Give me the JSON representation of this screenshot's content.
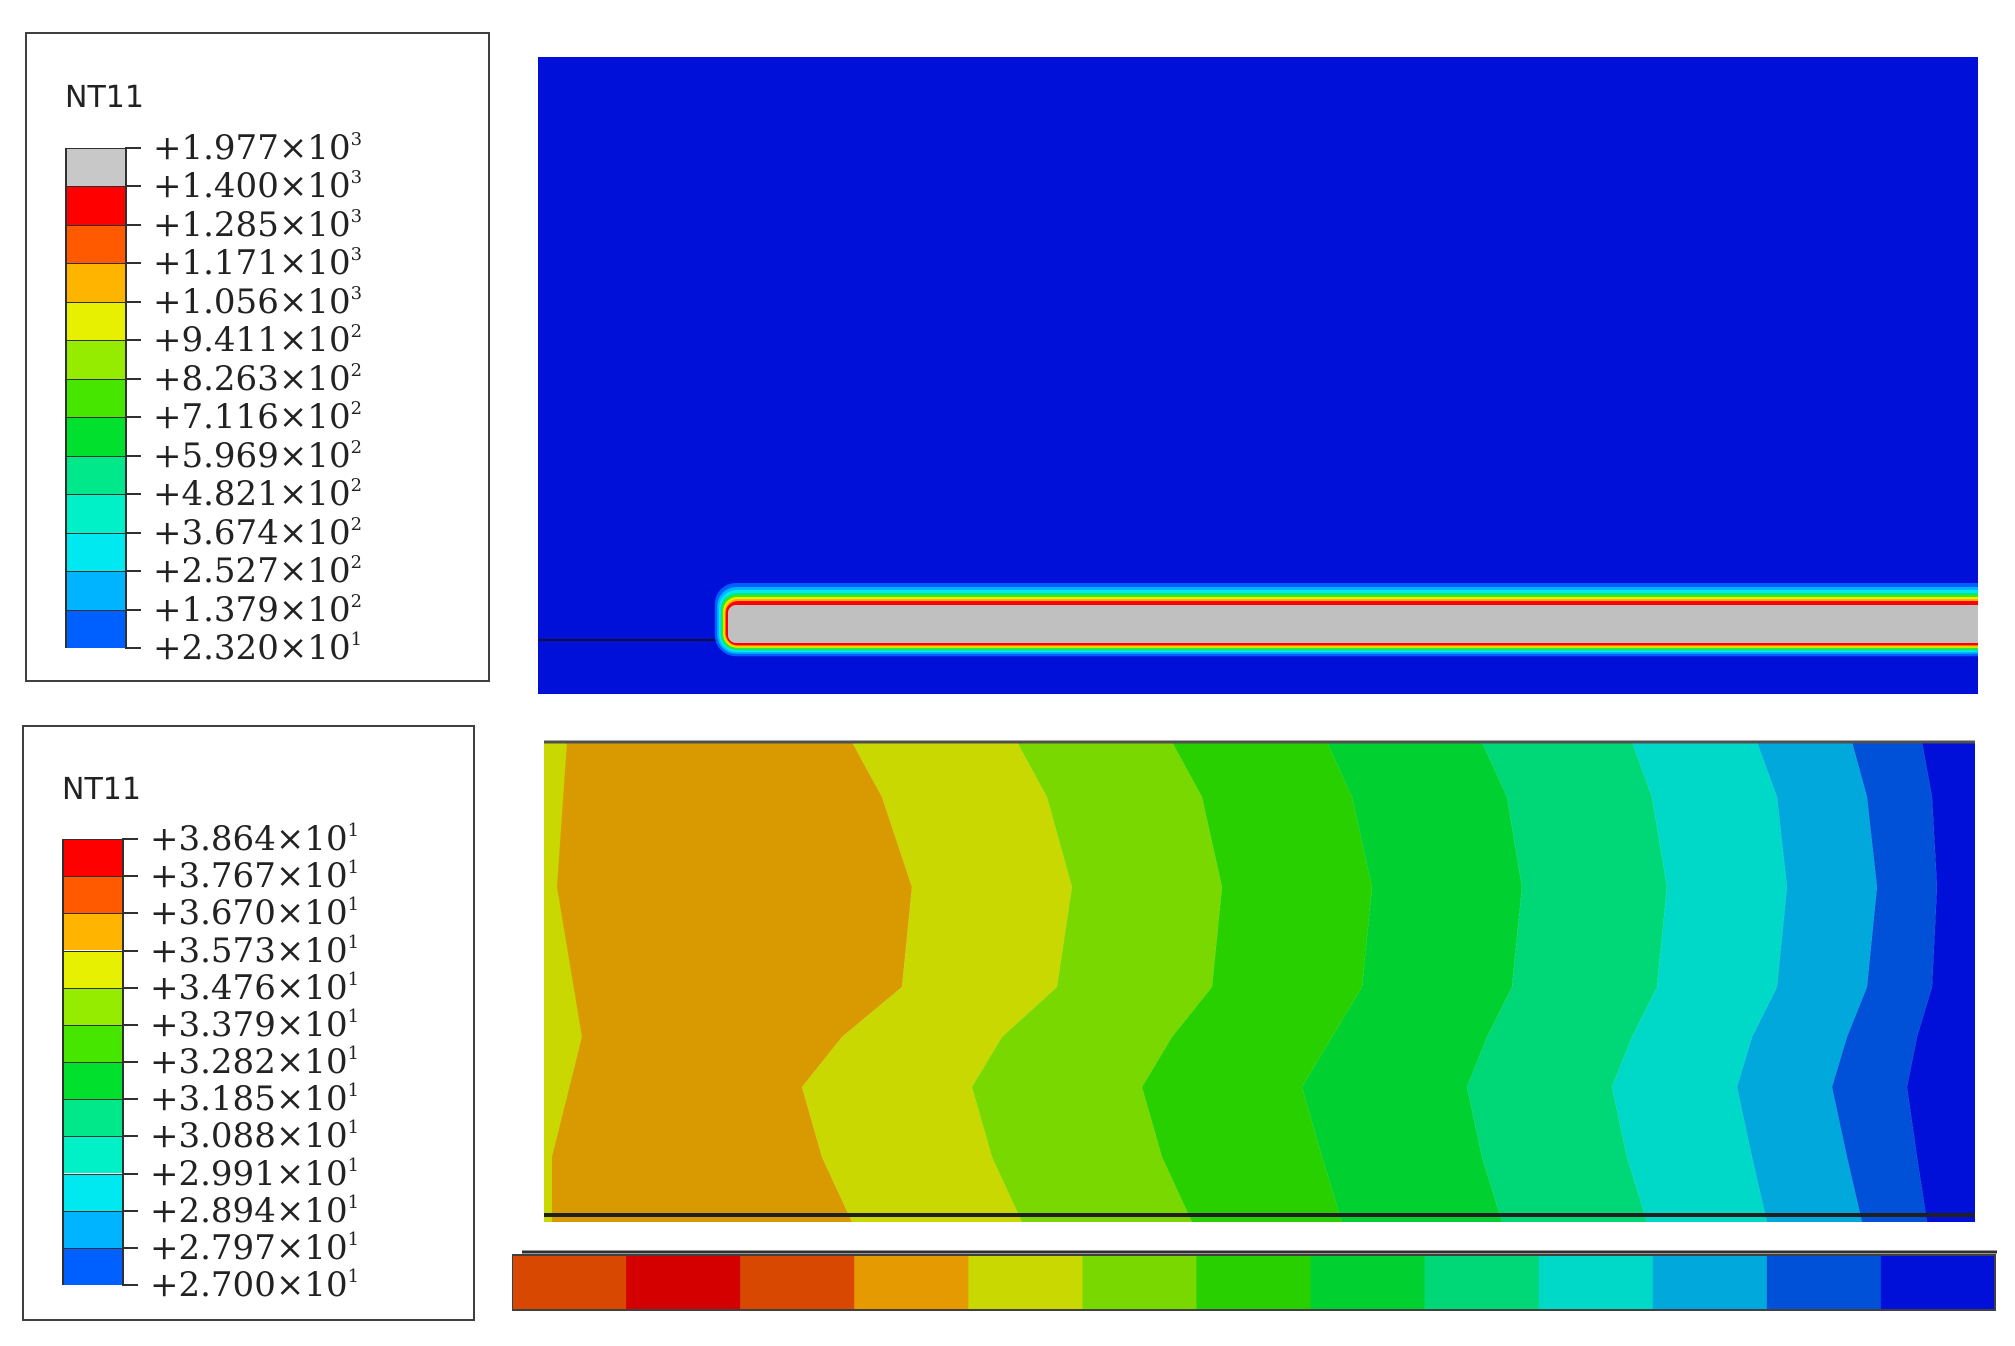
{
  "top_panel": {
    "legend": {
      "title": "NT11",
      "entries": [
        {
          "label": "+1.977×10",
          "exp": "3",
          "color": "#c8c8c8"
        },
        {
          "label": "+1.400×10",
          "exp": "3",
          "color": "#ff0000"
        },
        {
          "label": "+1.285×10",
          "exp": "3",
          "color": "#ff5a00"
        },
        {
          "label": "+1.171×10",
          "exp": "3",
          "color": "#ffb400"
        },
        {
          "label": "+1.056×10",
          "exp": "3",
          "color": "#e6f000"
        },
        {
          "label": "+9.411×10",
          "exp": "2",
          "color": "#96ec00"
        },
        {
          "label": "+8.263×10",
          "exp": "2",
          "color": "#46e600"
        },
        {
          "label": "+7.116×10",
          "exp": "2",
          "color": "#00e02c"
        },
        {
          "label": "+5.969×10",
          "exp": "2",
          "color": "#00e88a"
        },
        {
          "label": "+4.821×10",
          "exp": "2",
          "color": "#00f0c8"
        },
        {
          "label": "+3.674×10",
          "exp": "2",
          "color": "#00e8f0"
        },
        {
          "label": "+2.527×10",
          "exp": "2",
          "color": "#00b4ff"
        },
        {
          "label": "+1.379×10",
          "exp": "2",
          "color": "#0060ff"
        },
        {
          "label": "+2.320×10",
          "exp": "1",
          "color": "#0000ff"
        }
      ]
    },
    "plot": {
      "background_color": "#0010d8",
      "bar_color": "#c0c0c0"
    }
  },
  "bottom_panel": {
    "legend": {
      "title": "NT11",
      "entries": [
        {
          "label": "+3.864×10",
          "exp": "1",
          "color": "#ff0000"
        },
        {
          "label": "+3.767×10",
          "exp": "1",
          "color": "#ff5a00"
        },
        {
          "label": "+3.670×10",
          "exp": "1",
          "color": "#ffb400"
        },
        {
          "label": "+3.573×10",
          "exp": "1",
          "color": "#e6f000"
        },
        {
          "label": "+3.476×10",
          "exp": "1",
          "color": "#96ec00"
        },
        {
          "label": "+3.379×10",
          "exp": "1",
          "color": "#46e600"
        },
        {
          "label": "+3.282×10",
          "exp": "1",
          "color": "#00e02c"
        },
        {
          "label": "+3.185×10",
          "exp": "1",
          "color": "#00e88a"
        },
        {
          "label": "+3.088×10",
          "exp": "1",
          "color": "#00f0c8"
        },
        {
          "label": "+2.991×10",
          "exp": "1",
          "color": "#00e8f0"
        },
        {
          "label": "+2.894×10",
          "exp": "1",
          "color": "#00b4ff"
        },
        {
          "label": "+2.797×10",
          "exp": "1",
          "color": "#0060ff"
        },
        {
          "label": "+2.700×10",
          "exp": "1",
          "color": "#0000ff"
        }
      ]
    },
    "plot": {
      "band_colors": [
        "#d89a00",
        "#c8d800",
        "#78d800",
        "#28d000",
        "#00d030",
        "#00d878",
        "#00d8c8",
        "#00a8dc",
        "#0050d8",
        "#0010d8"
      ],
      "strip_colors": [
        "#d84800",
        "#d40000",
        "#d84800",
        "#e49a00",
        "#c8d800",
        "#78d800",
        "#28d000",
        "#00d030",
        "#00d878",
        "#00d8c8",
        "#00a8dc",
        "#0050d8",
        "#0010d8"
      ]
    }
  }
}
